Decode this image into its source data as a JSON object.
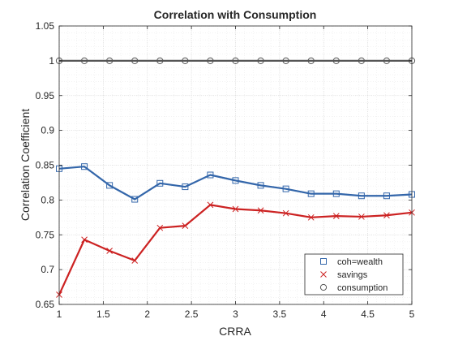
{
  "colors": {
    "background": "#ffffff",
    "axes_edge": "#262626",
    "major_grid": "#d9d9d9",
    "minor_grid": "#ececec"
  },
  "chart_data": {
    "type": "line",
    "title": "Correlation with Consumption",
    "xlabel": "CRRA",
    "ylabel": "Correlation Coefficient",
    "xlim": [
      1,
      5
    ],
    "ylim": [
      0.65,
      1.05
    ],
    "xticks": [
      1,
      1.5,
      2,
      2.5,
      3,
      3.5,
      4,
      4.5,
      5
    ],
    "xtick_labels": [
      "1",
      "1.5",
      "2",
      "2.5",
      "3",
      "3.5",
      "4",
      "4.5",
      "5"
    ],
    "yticks": [
      0.65,
      0.7,
      0.75,
      0.8,
      0.85,
      0.9,
      0.95,
      1,
      1.05
    ],
    "ytick_labels": [
      "0.65",
      "0.7",
      "0.75",
      "0.8",
      "0.85",
      "0.9",
      "0.95",
      "1",
      "1.05"
    ],
    "grid": "major and minor",
    "legend_location": "bottom-right",
    "x": [
      1,
      1.2857,
      1.5714,
      1.8571,
      2.1429,
      2.4286,
      2.7143,
      3,
      3.2857,
      3.5714,
      3.8571,
      4.1429,
      4.4286,
      4.7143,
      5
    ],
    "series": [
      {
        "name": "coh=wealth",
        "color": "#3366aa",
        "marker": "square",
        "values": [
          0.845,
          0.848,
          0.821,
          0.801,
          0.824,
          0.819,
          0.836,
          0.828,
          0.821,
          0.816,
          0.809,
          0.809,
          0.806,
          0.806,
          0.808
        ]
      },
      {
        "name": "savings",
        "color": "#cc2222",
        "marker": "x",
        "values": [
          0.664,
          0.743,
          0.727,
          0.713,
          0.76,
          0.763,
          0.793,
          0.787,
          0.785,
          0.781,
          0.775,
          0.777,
          0.776,
          0.778,
          0.782
        ]
      },
      {
        "name": "consumption",
        "color": "#555555",
        "marker": "circle",
        "values": [
          1,
          1,
          1,
          1,
          1,
          1,
          1,
          1,
          1,
          1,
          1,
          1,
          1,
          1,
          1
        ]
      }
    ]
  }
}
